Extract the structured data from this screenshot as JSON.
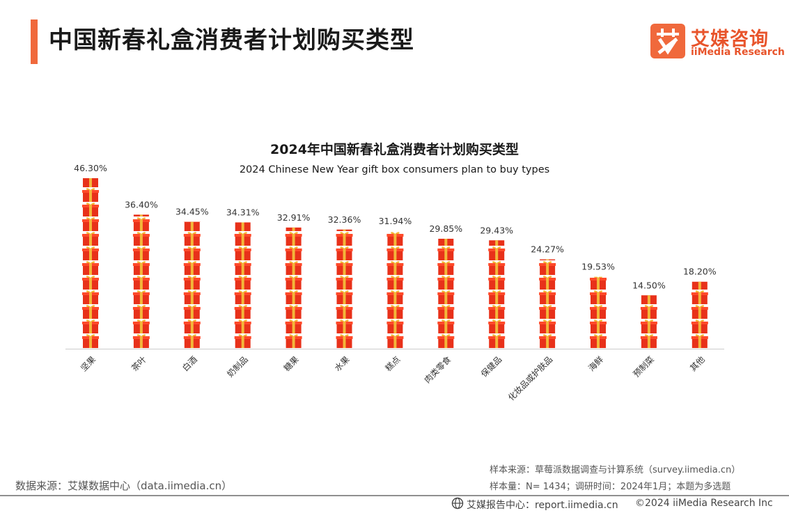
{
  "header": {
    "title": "中国新春礼盒消费者计划购买类型"
  },
  "logo": {
    "mark": "艾",
    "name_cn": "艾媒咨询",
    "name_en": "iiMedia Research",
    "color": "#f0693c"
  },
  "chart_data": {
    "type": "bar",
    "title": "2024年中国新春礼盒消费者计划购买类型",
    "subtitle": "2024 Chinese New Year gift box consumers plan to buy types",
    "xlabel": "",
    "ylabel": "",
    "ylim": [
      0,
      46.3
    ],
    "grid": false,
    "legend": "none",
    "bar_style": "stacked-gift-box-icons",
    "bar_color": "#e8311a",
    "ribbon_color": "#f3b63a",
    "categories": [
      "坚果",
      "茶叶",
      "白酒",
      "奶制品",
      "糖果",
      "水果",
      "糕点",
      "肉类零食",
      "保健品",
      "化妆品或护肤品",
      "海鲜",
      "预制菜",
      "其他"
    ],
    "values": [
      46.3,
      36.4,
      34.45,
      34.31,
      32.91,
      32.36,
      31.94,
      29.85,
      29.43,
      24.27,
      19.53,
      14.5,
      18.2
    ],
    "value_labels": [
      "46.30%",
      "36.40%",
      "34.45%",
      "34.31%",
      "32.91%",
      "32.36%",
      "31.94%",
      "29.85%",
      "29.43%",
      "24.27%",
      "19.53%",
      "14.50%",
      "18.20%"
    ]
  },
  "footer": {
    "data_source": "数据来源：艾媒数据中心（data.iimedia.cn）",
    "sample_source": "样本来源：草莓派数据调查与计算系统（survey.iimedia.cn）",
    "sample_info": "样本量：N= 1434；调研时间：2024年1月；本题为多选题",
    "report_center": "艾媒报告中心：report.iimedia.cn",
    "copyright": "©2024  iiMedia Research  Inc",
    "globe_icon": "globe-icon"
  }
}
